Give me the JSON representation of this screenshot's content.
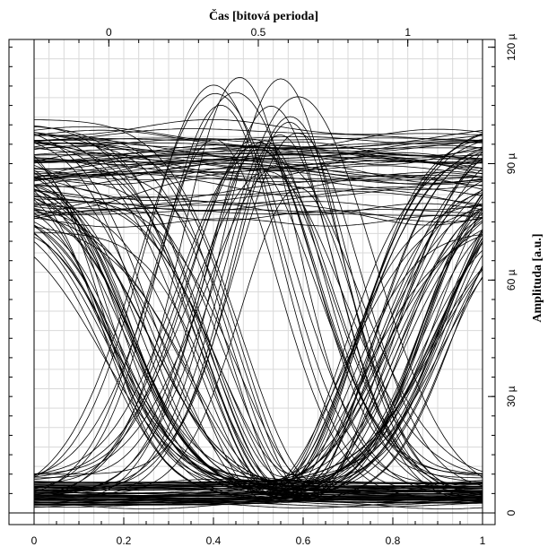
{
  "chart_data": {
    "type": "line",
    "chart_kind": "eye diagram",
    "title": "",
    "top_axis": {
      "label": "Čas [bitová perioda]",
      "tick_labels": [
        "0",
        "0.5",
        "1"
      ],
      "ticks": [
        0,
        0.5,
        1
      ],
      "range": [
        -0.25,
        1.25
      ]
    },
    "bottom_axis": {
      "label": "",
      "tick_labels": [
        "0",
        "0.2",
        "0.4",
        "0.6",
        "0.8",
        "1"
      ],
      "ticks": [
        0,
        0.2,
        0.4,
        0.6,
        0.8,
        1
      ],
      "range": [
        0,
        1
      ]
    },
    "right_axis": {
      "label": "Amplituda [a.u.]",
      "tick_labels": [
        "0",
        "30 µ",
        "60 µ",
        "90 µ",
        "120 µ"
      ],
      "ticks": [
        0,
        30,
        60,
        90,
        120
      ],
      "units": "µ (a.u.)",
      "range": [
        -3,
        122
      ]
    },
    "grid": true,
    "colors": {
      "trace": "#000000",
      "grid": "#d9d9d9",
      "frame": "#000000",
      "background": "#ffffff"
    },
    "trace_families": [
      {
        "name_hint": "",
        "kind": "level-one",
        "count": 50,
        "level_range": [
          75,
          103
        ]
      },
      {
        "name_hint": "",
        "kind": "level-zero",
        "count": 25,
        "level_range": [
          2,
          8
        ]
      },
      {
        "name_hint": "",
        "kind": "rising",
        "count": 30,
        "crossing_x": 0.87
      },
      {
        "name_hint": "",
        "kind": "falling",
        "count": 30,
        "crossing_x": 0.2
      },
      {
        "name_hint": "",
        "kind": "isolated-one",
        "count": 22,
        "peak_range": [
          82,
          117
        ]
      },
      {
        "name_hint": "",
        "kind": "isolated-zero",
        "count": 22,
        "trough_range": [
          3,
          10
        ]
      }
    ]
  }
}
